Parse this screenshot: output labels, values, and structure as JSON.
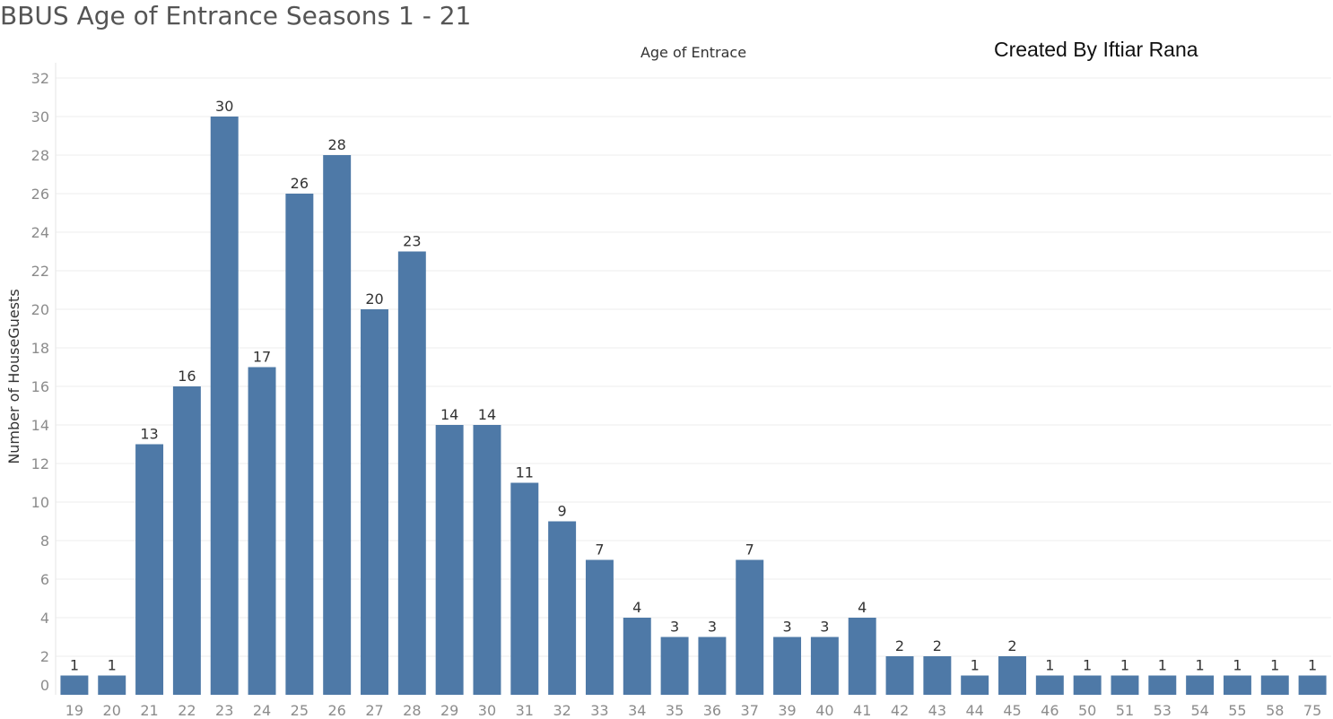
{
  "page": {
    "title": "BBUS Age of Entrance Seasons 1 - 21",
    "credit": "Created By Iftiar Rana"
  },
  "chart_data": {
    "type": "bar",
    "title": "Age of Entrace",
    "xlabel": "",
    "ylabel": "Number of HouseGuests",
    "categories": [
      "19",
      "20",
      "21",
      "22",
      "23",
      "24",
      "25",
      "26",
      "27",
      "28",
      "29",
      "30",
      "31",
      "32",
      "33",
      "34",
      "35",
      "36",
      "37",
      "39",
      "40",
      "41",
      "42",
      "43",
      "44",
      "45",
      "46",
      "50",
      "51",
      "53",
      "54",
      "55",
      "58",
      "75"
    ],
    "values": [
      1,
      1,
      13,
      16,
      30,
      17,
      26,
      28,
      20,
      23,
      14,
      14,
      11,
      9,
      7,
      4,
      3,
      3,
      7,
      3,
      3,
      4,
      2,
      2,
      1,
      2,
      1,
      1,
      1,
      1,
      1,
      1,
      1,
      1
    ],
    "ylim": [
      0,
      33
    ],
    "yticks": [
      0,
      2,
      4,
      6,
      8,
      10,
      12,
      14,
      16,
      18,
      20,
      22,
      24,
      26,
      28,
      30,
      32
    ],
    "grid": true,
    "bar_color": "#4e79a7",
    "data_labels": true
  }
}
